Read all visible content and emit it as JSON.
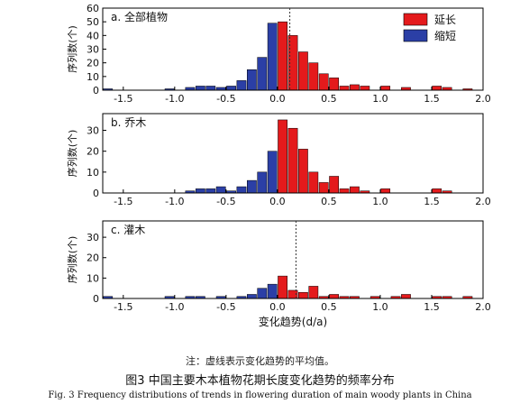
{
  "colors": {
    "extend": "#e41a1c",
    "shorten": "#2b3fa6",
    "mean_line": "#333333"
  },
  "chart_data": [
    {
      "type": "bar",
      "title": "a. 全部植物",
      "ylabel": "序列数(个)",
      "ylim": [
        0,
        60
      ],
      "yticks": [
        "0",
        "10",
        "20",
        "30",
        "40",
        "50",
        "60"
      ],
      "xlim": [
        -1.7,
        2.0
      ],
      "xticks": [
        "-1.5",
        "-1.0",
        "-0.5",
        "0.0",
        "0.5",
        "1.0",
        "1.5",
        "2.0"
      ],
      "mean": 0.12,
      "legend": {
        "position": "top-right",
        "entries": [
          "延长",
          "缩短"
        ]
      },
      "series": [
        {
          "name": "缩短",
          "color": "#2b3fa6",
          "x": [
            -1.65,
            -1.05,
            -0.85,
            -0.75,
            -0.65,
            -0.55,
            -0.45,
            -0.35,
            -0.25,
            -0.15,
            -0.05
          ],
          "values": [
            1,
            1,
            2,
            3,
            3,
            2,
            3,
            7,
            15,
            24,
            49
          ]
        },
        {
          "name": "延长",
          "color": "#e41a1c",
          "x": [
            0.05,
            0.15,
            0.25,
            0.35,
            0.45,
            0.55,
            0.65,
            0.75,
            0.85,
            1.05,
            1.25,
            1.55,
            1.65,
            1.85
          ],
          "values": [
            50,
            40,
            28,
            20,
            12,
            9,
            3,
            4,
            3,
            3,
            2,
            3,
            2,
            1
          ]
        }
      ]
    },
    {
      "type": "bar",
      "title": "b. 乔木",
      "ylabel": "序列数(个)",
      "ylim": [
        0,
        38
      ],
      "yticks": [
        "0",
        "10",
        "20",
        "30"
      ],
      "xlim": [
        -1.7,
        2.0
      ],
      "xticks": [
        "-1.5",
        "-1.0",
        "-0.5",
        "0.0",
        "0.5",
        "1.0",
        "1.5",
        "2.0"
      ],
      "mean": null,
      "series": [
        {
          "name": "缩短",
          "color": "#2b3fa6",
          "x": [
            -0.85,
            -0.75,
            -0.65,
            -0.55,
            -0.45,
            -0.35,
            -0.25,
            -0.15,
            -0.05
          ],
          "values": [
            1,
            2,
            2,
            3,
            1,
            3,
            6,
            10,
            20
          ]
        },
        {
          "name": "延长",
          "color": "#e41a1c",
          "x": [
            0.05,
            0.15,
            0.25,
            0.35,
            0.45,
            0.55,
            0.65,
            0.75,
            0.85,
            1.05,
            1.55,
            1.65
          ],
          "values": [
            35,
            31,
            21,
            10,
            5,
            8,
            2,
            3,
            1,
            2,
            2,
            1
          ]
        }
      ]
    },
    {
      "type": "bar",
      "title": "c. 灌木",
      "ylabel": "序列数(个)",
      "xlabel": "变化趋势(d/a)",
      "ylim": [
        0,
        38
      ],
      "yticks": [
        "0",
        "10",
        "20",
        "30"
      ],
      "xlim": [
        -1.7,
        2.0
      ],
      "xticks": [
        "-1.5",
        "-1.0",
        "-0.5",
        "0.0",
        "0.5",
        "1.0",
        "1.5",
        "2.0"
      ],
      "mean": 0.18,
      "series": [
        {
          "name": "缩短",
          "color": "#2b3fa6",
          "x": [
            -1.65,
            -1.05,
            -0.85,
            -0.75,
            -0.55,
            -0.35,
            -0.25,
            -0.15,
            -0.05
          ],
          "values": [
            1,
            1,
            1,
            1,
            1,
            1,
            2,
            5,
            7
          ]
        },
        {
          "name": "延长",
          "color": "#e41a1c",
          "x": [
            0.05,
            0.15,
            0.25,
            0.35,
            0.45,
            0.55,
            0.65,
            0.75,
            0.95,
            1.15,
            1.25,
            1.55,
            1.65,
            1.85
          ],
          "values": [
            11,
            4,
            3,
            6,
            1,
            2,
            1,
            1,
            1,
            1,
            2,
            1,
            1,
            1
          ]
        }
      ]
    }
  ],
  "note": "注：虚线表示变化趋势的平均值。",
  "caption_cn": "图3   中国主要木本植物花期长度变化趋势的频率分布",
  "caption_en": "Fig. 3  Frequency distributions of trends in flowering duration of main woody plants in China"
}
